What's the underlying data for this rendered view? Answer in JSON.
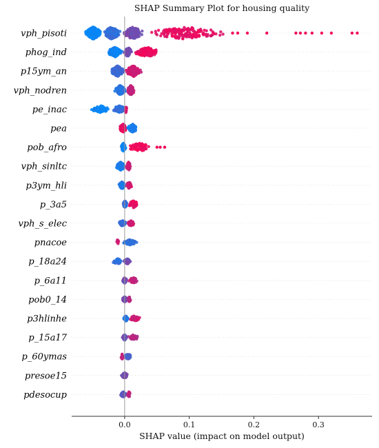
{
  "chart_data": {
    "type": "scatter",
    "subtype": "shap-beeswarm",
    "title": "SHAP Summary Plot for housing quality",
    "xlabel": "SHAP value (impact on model output)",
    "ylabel": "",
    "xlim": [
      -0.082,
      0.383
    ],
    "xticks": [
      {
        "value": 0.0,
        "label": "0.0"
      },
      {
        "value": 0.1,
        "label": "0.1"
      },
      {
        "value": 0.2,
        "label": "0.2"
      },
      {
        "value": 0.3,
        "label": "0.3"
      }
    ],
    "grid": false,
    "zero_line": true,
    "color_scale": {
      "low": "#008afb",
      "high": "#ff0052"
    },
    "features": [
      {
        "name": "vph_pisoti",
        "width": 9,
        "clusters": [
          {
            "a": -0.062,
            "b": -0.035,
            "n": 300,
            "c": 0.03
          },
          {
            "a": -0.035,
            "b": -0.005,
            "n": 220,
            "c": 0.2
          },
          {
            "a": -0.005,
            "b": 0.03,
            "n": 160,
            "c": 0.45
          },
          {
            "a": 0.03,
            "b": 0.16,
            "n": 160,
            "c": 0.9
          }
        ],
        "outliers": [
          {
            "v": 0.167,
            "c": 0.95
          },
          {
            "v": 0.175,
            "c": 0.95
          },
          {
            "v": 0.19,
            "c": 0.95
          },
          {
            "v": 0.22,
            "c": 0.95
          },
          {
            "v": 0.265,
            "c": 0.95
          },
          {
            "v": 0.272,
            "c": 0.95
          },
          {
            "v": 0.28,
            "c": 0.95
          },
          {
            "v": 0.29,
            "c": 0.95
          },
          {
            "v": 0.305,
            "c": 0.95
          },
          {
            "v": 0.32,
            "c": 0.95
          },
          {
            "v": 0.352,
            "c": 0.95
          },
          {
            "v": 0.36,
            "c": 0.95
          }
        ]
      },
      {
        "name": "phog_ind",
        "width": 7,
        "clusters": [
          {
            "a": -0.028,
            "b": -0.002,
            "n": 140,
            "c": 0.05
          },
          {
            "a": -0.002,
            "b": 0.012,
            "n": 60,
            "c": 0.45
          },
          {
            "a": 0.012,
            "b": 0.057,
            "n": 110,
            "c": 0.92
          }
        ],
        "outliers": []
      },
      {
        "name": "p15ym_an",
        "width": 8,
        "clusters": [
          {
            "a": -0.022,
            "b": 0.0,
            "n": 170,
            "c": 0.25
          },
          {
            "a": 0.0,
            "b": 0.027,
            "n": 150,
            "c": 0.8
          }
        ],
        "outliers": []
      },
      {
        "name": "vph_nodren",
        "width": 7,
        "clusters": [
          {
            "a": -0.016,
            "b": 0.002,
            "n": 130,
            "c": 0.15
          },
          {
            "a": 0.002,
            "b": 0.017,
            "n": 70,
            "c": 0.75
          }
        ],
        "outliers": []
      },
      {
        "name": "pe_inac",
        "width": 5,
        "clusters": [
          {
            "a": -0.054,
            "b": -0.02,
            "n": 60,
            "c": 0.04
          },
          {
            "a": -0.02,
            "b": 0.004,
            "n": 110,
            "c": 0.2
          },
          {
            "a": 0.0,
            "b": 0.004,
            "n": 20,
            "c": 0.85
          }
        ],
        "outliers": []
      },
      {
        "name": "pea",
        "width": 6,
        "clusters": [
          {
            "a": -0.009,
            "b": 0.004,
            "n": 140,
            "c": 0.92
          },
          {
            "a": 0.003,
            "b": 0.022,
            "n": 70,
            "c": 0.08
          }
        ],
        "outliers": []
      },
      {
        "name": "pob_afro",
        "width": 6,
        "clusters": [
          {
            "a": -0.006,
            "b": 0.002,
            "n": 140,
            "c": 0.05
          },
          {
            "a": 0.002,
            "b": 0.045,
            "n": 70,
            "c": 0.93
          }
        ],
        "outliers": [
          {
            "v": 0.05,
            "c": 0.95
          },
          {
            "v": 0.055,
            "c": 0.95
          },
          {
            "v": 0.062,
            "c": 0.95
          }
        ]
      },
      {
        "name": "vph_sinltc",
        "width": 6,
        "clusters": [
          {
            "a": -0.014,
            "b": 0.002,
            "n": 130,
            "c": 0.1
          },
          {
            "a": 0.002,
            "b": 0.01,
            "n": 40,
            "c": 0.8
          }
        ],
        "outliers": []
      },
      {
        "name": "p3ym_hli",
        "width": 5,
        "clusters": [
          {
            "a": -0.01,
            "b": 0.002,
            "n": 110,
            "c": 0.12
          },
          {
            "a": 0.002,
            "b": 0.012,
            "n": 40,
            "c": 0.8
          }
        ],
        "outliers": []
      },
      {
        "name": "p_3a5",
        "width": 5,
        "clusters": [
          {
            "a": -0.003,
            "b": 0.004,
            "n": 100,
            "c": 0.2
          },
          {
            "a": 0.004,
            "b": 0.023,
            "n": 60,
            "c": 0.9
          }
        ],
        "outliers": []
      },
      {
        "name": "vph_s_elec",
        "width": 4,
        "clusters": [
          {
            "a": -0.01,
            "b": 0.003,
            "n": 90,
            "c": 0.2
          },
          {
            "a": 0.003,
            "b": 0.017,
            "n": 40,
            "c": 0.8
          }
        ],
        "outliers": []
      },
      {
        "name": "pnacoe",
        "width": 4,
        "clusters": [
          {
            "a": -0.014,
            "b": -0.008,
            "n": 10,
            "c": 0.8
          },
          {
            "a": -0.004,
            "b": 0.02,
            "n": 100,
            "c": 0.2
          }
        ],
        "outliers": []
      },
      {
        "name": "p_18a24",
        "width": 4,
        "clusters": [
          {
            "a": -0.02,
            "b": -0.002,
            "n": 40,
            "c": 0.2
          },
          {
            "a": -0.002,
            "b": 0.01,
            "n": 80,
            "c": 0.45
          }
        ],
        "outliers": []
      },
      {
        "name": "p_6a11",
        "width": 4,
        "clusters": [
          {
            "a": -0.004,
            "b": 0.004,
            "n": 70,
            "c": 0.45
          },
          {
            "a": 0.004,
            "b": 0.023,
            "n": 40,
            "c": 0.75
          }
        ],
        "outliers": []
      },
      {
        "name": "pob0_14",
        "width": 4,
        "clusters": [
          {
            "a": -0.004,
            "b": 0.004,
            "n": 80,
            "c": 0.45
          },
          {
            "a": 0.004,
            "b": 0.01,
            "n": 20,
            "c": 0.7
          }
        ],
        "outliers": []
      },
      {
        "name": "p3hlinhe",
        "width": 4,
        "clusters": [
          {
            "a": -0.002,
            "b": 0.006,
            "n": 80,
            "c": 0.15
          },
          {
            "a": 0.006,
            "b": 0.026,
            "n": 40,
            "c": 0.8
          }
        ],
        "outliers": []
      },
      {
        "name": "p_15a17",
        "width": 4,
        "clusters": [
          {
            "a": -0.004,
            "b": 0.004,
            "n": 80,
            "c": 0.4
          },
          {
            "a": 0.004,
            "b": 0.023,
            "n": 40,
            "c": 0.7
          }
        ],
        "outliers": []
      },
      {
        "name": "p_60ymas",
        "width": 4,
        "clusters": [
          {
            "a": -0.007,
            "b": -0.001,
            "n": 20,
            "c": 0.75
          },
          {
            "a": -0.001,
            "b": 0.011,
            "n": 70,
            "c": 0.3
          }
        ],
        "outliers": []
      },
      {
        "name": "presoe15",
        "width": 4,
        "clusters": [
          {
            "a": -0.006,
            "b": 0.006,
            "n": 90,
            "c": 0.45
          }
        ],
        "outliers": []
      },
      {
        "name": "pdesocup",
        "width": 4,
        "clusters": [
          {
            "a": -0.007,
            "b": 0.003,
            "n": 80,
            "c": 0.35
          },
          {
            "a": 0.003,
            "b": 0.01,
            "n": 20,
            "c": 0.75
          }
        ],
        "outliers": []
      }
    ]
  }
}
